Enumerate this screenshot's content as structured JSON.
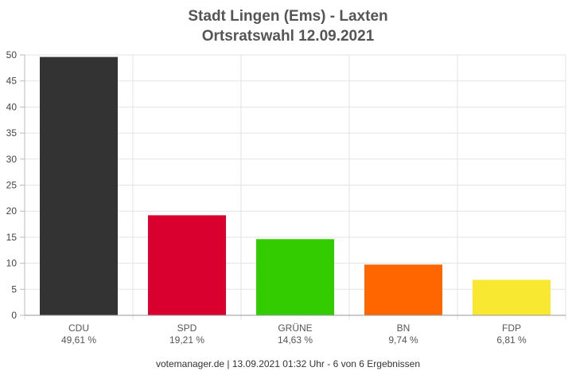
{
  "chart_data": {
    "type": "bar",
    "title": "Stadt Lingen (Ems) - Laxten",
    "subtitle": "Ortsratswahl 12.09.2021",
    "categories": [
      "CDU",
      "SPD",
      "GRÜNE",
      "BN",
      "FDP"
    ],
    "values": [
      49.61,
      19.21,
      14.63,
      9.74,
      6.81
    ],
    "value_labels": [
      "49,61 %",
      "19,21 %",
      "14,63 %",
      "9,74 %",
      "6,81 %"
    ],
    "colors": [
      "#333333",
      "#d9002f",
      "#33cc00",
      "#ff6600",
      "#f9e832"
    ],
    "yticks": [
      0,
      5,
      10,
      15,
      20,
      25,
      30,
      35,
      40,
      45,
      50
    ],
    "ylim": [
      0,
      50
    ],
    "grid": true,
    "xlabel": "",
    "ylabel": ""
  },
  "footer": "votemanager.de | 13.09.2021 01:32 Uhr - 6 von 6 Ergebnissen"
}
